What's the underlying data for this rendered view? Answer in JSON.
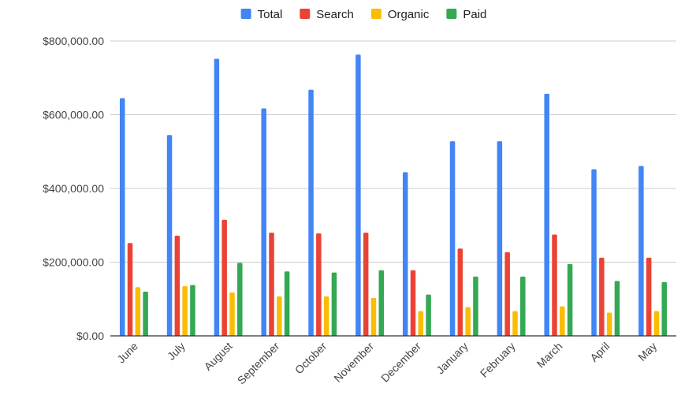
{
  "chart_data": {
    "type": "bar",
    "title": "",
    "xlabel": "",
    "ylabel": "",
    "categories": [
      "June",
      "July",
      "August",
      "September",
      "October",
      "November",
      "December",
      "January",
      "February",
      "March",
      "April",
      "May"
    ],
    "series": [
      {
        "name": "Total",
        "color": "#4285F4",
        "values": [
          645000,
          545000,
          752000,
          617000,
          668000,
          763000,
          444000,
          528000,
          528000,
          657000,
          452000,
          461000
        ]
      },
      {
        "name": "Search",
        "color": "#EA4335",
        "values": [
          252000,
          272000,
          315000,
          280000,
          278000,
          280000,
          178000,
          237000,
          227000,
          275000,
          212000,
          212000
        ]
      },
      {
        "name": "Organic",
        "color": "#FBBC04",
        "values": [
          132000,
          135000,
          118000,
          107000,
          107000,
          103000,
          67000,
          78000,
          67000,
          80000,
          63000,
          67000
        ]
      },
      {
        "name": "Paid",
        "color": "#34A853",
        "values": [
          120000,
          138000,
          198000,
          175000,
          172000,
          178000,
          112000,
          161000,
          161000,
          195000,
          149000,
          146000
        ]
      }
    ],
    "ylim": [
      0,
      800000
    ],
    "yticks": [
      0,
      200000,
      400000,
      600000,
      800000
    ],
    "ytick_labels": [
      "$0.00",
      "$200,000.00",
      "$400,000.00",
      "$600,000.00",
      "$800,000.00"
    ],
    "grid": true,
    "legend_position": "top-center"
  }
}
